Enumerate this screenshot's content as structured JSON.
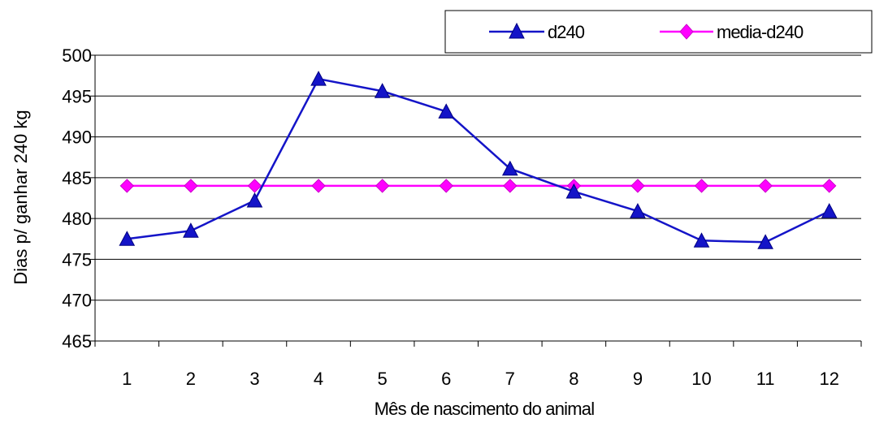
{
  "chart_data": {
    "type": "line",
    "title": "",
    "xlabel": "Mês de nascimento do animal",
    "ylabel": "Dias p/ ganhar 240 kg",
    "categories": [
      "1",
      "2",
      "3",
      "4",
      "5",
      "6",
      "7",
      "8",
      "9",
      "10",
      "11",
      "12"
    ],
    "ylim": [
      465,
      500
    ],
    "yticks": [
      "465",
      "470",
      "475",
      "480",
      "485",
      "490",
      "495",
      "500"
    ],
    "grid": true,
    "legend_position": "top-right",
    "series": [
      {
        "name": "d240",
        "color": "#1414C8",
        "marker": "triangle",
        "values": [
          477.5,
          478.5,
          482.2,
          497.1,
          495.6,
          493.1,
          486.1,
          483.3,
          480.9,
          477.3,
          477.1,
          480.9
        ]
      },
      {
        "name": "media-d240",
        "color": "#FF00FF",
        "marker": "diamond",
        "values": [
          484,
          484,
          484,
          484,
          484,
          484,
          484,
          484,
          484,
          484,
          484,
          484
        ]
      }
    ]
  }
}
